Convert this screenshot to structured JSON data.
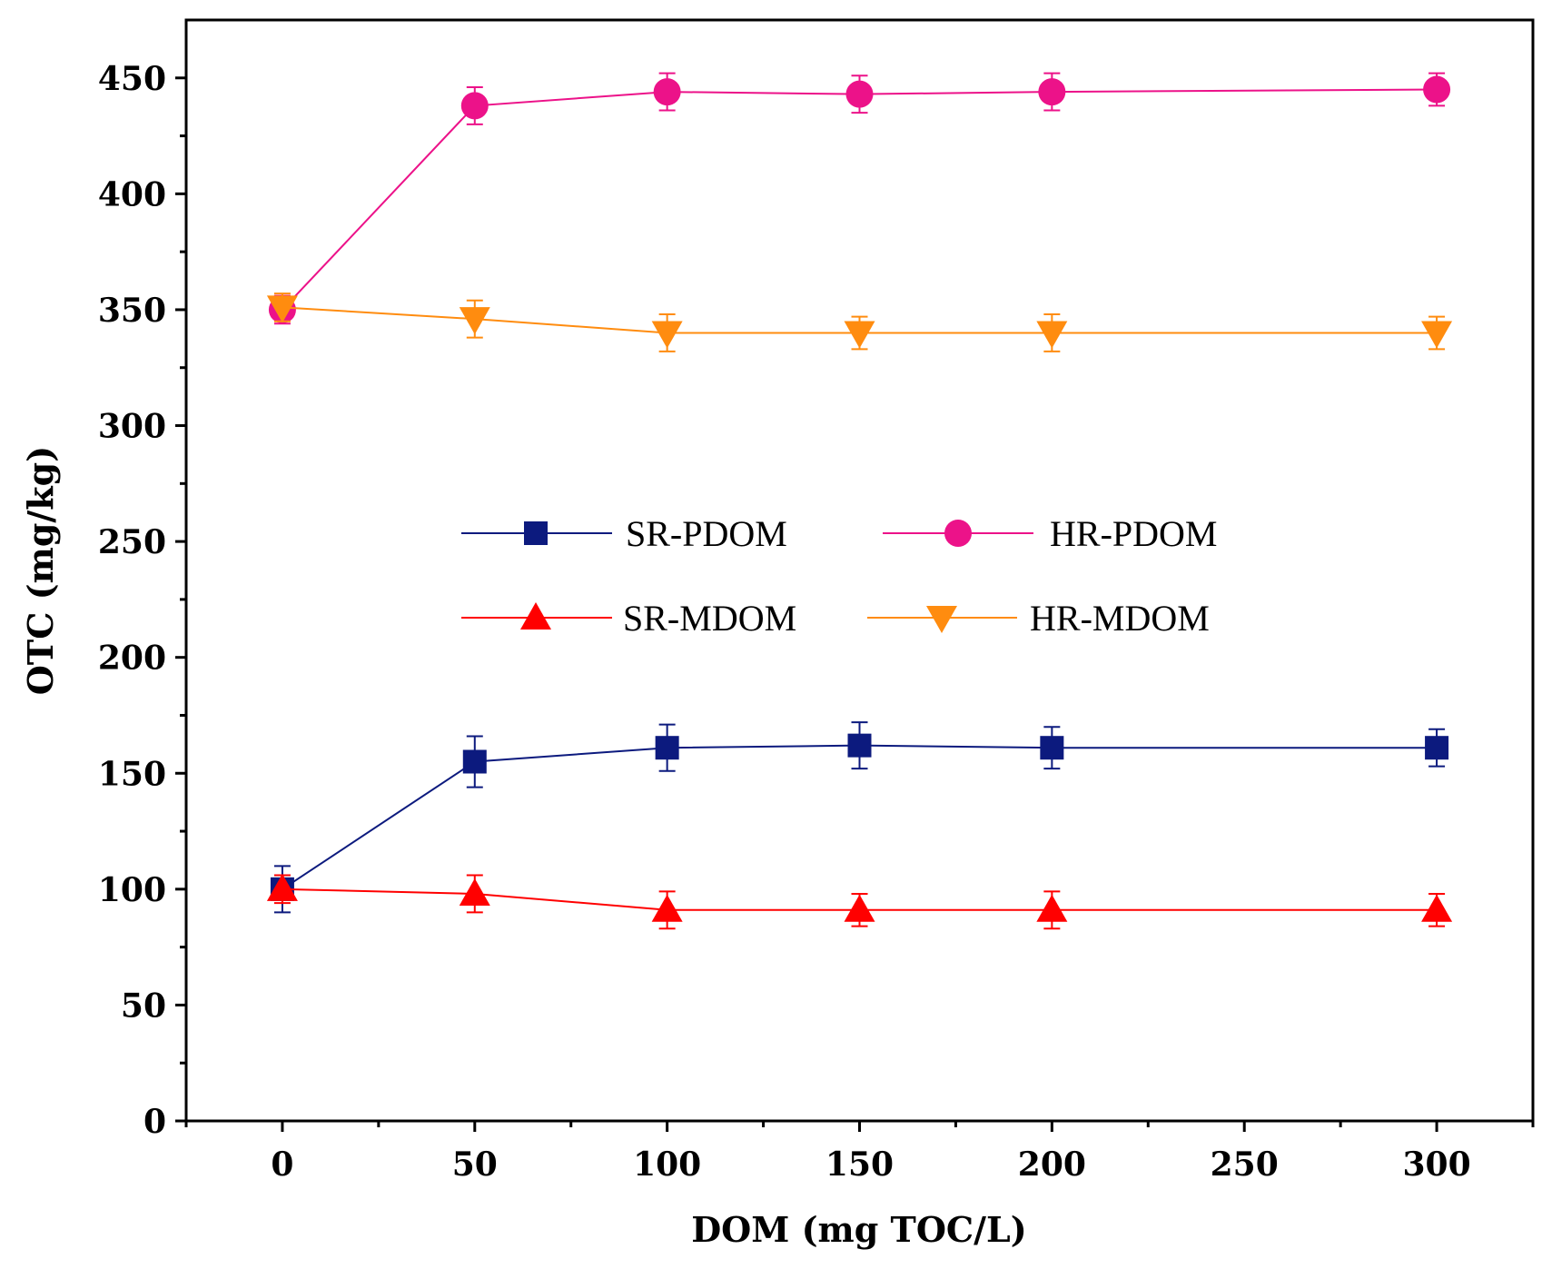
{
  "chart_data": {
    "type": "line",
    "title": "",
    "xlabel": "DOM (mg TOC/L)",
    "ylabel": "OTC (mg/kg)",
    "xlim": [
      -25,
      325
    ],
    "ylim": [
      0,
      475
    ],
    "xticks": [
      0,
      50,
      100,
      150,
      200,
      250,
      300
    ],
    "yticks": [
      0,
      50,
      100,
      150,
      200,
      250,
      300,
      350,
      400,
      450
    ],
    "x": [
      0,
      50,
      100,
      150,
      200,
      300
    ],
    "grid": false,
    "legend_position": "center",
    "series": [
      {
        "name": "SR-PDOM",
        "color": "#0c1a7e",
        "marker": "square",
        "values": [
          100,
          155,
          161,
          162,
          161,
          161
        ],
        "errors": [
          10,
          11,
          10,
          10,
          9,
          8
        ]
      },
      {
        "name": "HR-PDOM",
        "color": "#ec1289",
        "marker": "circle",
        "values": [
          350,
          438,
          444,
          443,
          444,
          445
        ],
        "errors": [
          6,
          8,
          8,
          8,
          8,
          7
        ]
      },
      {
        "name": "SR-MDOM",
        "color": "#ff0000",
        "marker": "triangle-up",
        "values": [
          100,
          98,
          91,
          91,
          91,
          91
        ],
        "errors": [
          6,
          8,
          8,
          7,
          8,
          7
        ]
      },
      {
        "name": "HR-MDOM",
        "color": "#ff8c0f",
        "marker": "triangle-down",
        "values": [
          351,
          346,
          340,
          340,
          340,
          340
        ],
        "errors": [
          6,
          8,
          8,
          7,
          8,
          7
        ]
      }
    ]
  }
}
